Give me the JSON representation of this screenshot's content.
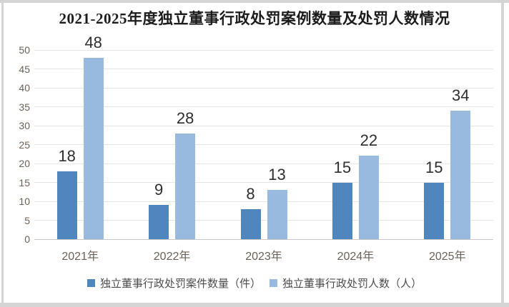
{
  "chart_data": {
    "type": "bar",
    "title": "2021-2025年度独立董事行政处罚案例数量及处罚人数情况",
    "categories": [
      "2021年",
      "2022年",
      "2023年",
      "2024年",
      "2025年"
    ],
    "series": [
      {
        "name": "独立董事行政处罚案件数量（件）",
        "values": [
          18,
          9,
          8,
          15,
          15
        ],
        "color": "#4E86BD"
      },
      {
        "name": "独立董事行政处罚人数（人）",
        "values": [
          48,
          28,
          13,
          22,
          34
        ],
        "color": "#98BADF"
      }
    ],
    "ylim": [
      0,
      50
    ],
    "ytick_step": 5,
    "ytick_labels": [
      "0",
      "5",
      "10",
      "15",
      "20",
      "25",
      "30",
      "35",
      "40",
      "45",
      "50"
    ],
    "grid": true,
    "legend_position": "bottom",
    "data_labels": true,
    "xlabel": "",
    "ylabel": ""
  },
  "colors": {
    "series_cases": "#4E86BD",
    "series_persons": "#98BADF",
    "gridline": "#E4E4E4",
    "axis_line": "#C6C6C6",
    "axis_text": "#6B6057",
    "data_label_text": "#2E2E2E",
    "title_text": "#1C1C1C",
    "frame": "#D5D5D5"
  }
}
